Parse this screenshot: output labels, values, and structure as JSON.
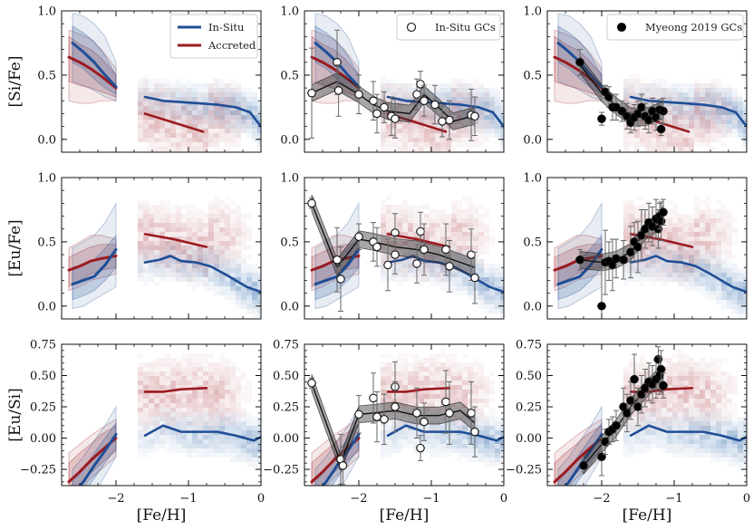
{
  "chart_data": {
    "type": "scatter",
    "layout": "3x3 grid",
    "xlabel": "[Fe/H]",
    "xlim": [
      -2.75,
      0.0
    ],
    "xticks": [
      -2,
      -1,
      0
    ],
    "xtick_labels": [
      "−2",
      "−1",
      "0"
    ],
    "colors": {
      "insitu": "#1f4e96",
      "accreted": "#9b1b20",
      "gc": "#111111"
    },
    "rows": [
      {
        "ylabel": "[Si/Fe]",
        "ylim": [
          -0.1,
          1.0
        ],
        "yticks": [
          0.0,
          0.5,
          1.0
        ],
        "ytick_labels": [
          "0.0",
          "0.5",
          "1.0"
        ],
        "insitu_lowz": {
          "x": [
            -2.6,
            -2.45,
            -2.3,
            -2.15,
            -2.0
          ],
          "y": [
            0.75,
            0.68,
            0.6,
            0.5,
            0.41
          ],
          "lo": [
            0.6,
            0.55,
            0.47,
            0.4,
            0.35
          ],
          "hi": [
            0.88,
            0.83,
            0.76,
            0.65,
            0.5
          ],
          "lo2": [
            0.45,
            0.42,
            0.38,
            0.33,
            0.3
          ],
          "hi2": [
            0.98,
            0.96,
            0.9,
            0.8,
            0.6
          ]
        },
        "accreted_lowz": {
          "x": [
            -2.65,
            -2.5,
            -2.35,
            -2.2,
            -2.0
          ],
          "y": [
            0.64,
            0.6,
            0.55,
            0.49,
            0.4
          ],
          "lo": [
            0.45,
            0.42,
            0.4,
            0.37,
            0.33
          ],
          "hi": [
            0.8,
            0.74,
            0.7,
            0.63,
            0.5
          ],
          "lo2": [
            0.3,
            0.28,
            0.28,
            0.3,
            0.3
          ],
          "hi2": [
            0.85,
            0.82,
            0.78,
            0.7,
            0.55
          ]
        },
        "insitu_line": {
          "x": [
            -1.6,
            -1.35,
            -1.1,
            -0.85,
            -0.6,
            -0.35,
            -0.15,
            0.0
          ],
          "y": [
            0.33,
            0.3,
            0.29,
            0.28,
            0.27,
            0.25,
            0.21,
            0.1
          ]
        },
        "accreted_line": {
          "x": [
            -1.6,
            -1.2,
            -0.8
          ],
          "y": [
            0.2,
            0.13,
            0.06
          ]
        },
        "insitu_gcs": {
          "x": [
            -2.65,
            -2.3,
            -2.28,
            -2.0,
            -1.8,
            -1.75,
            -1.65,
            -1.55,
            -1.5,
            -1.2,
            -1.15,
            -1.1,
            -0.95,
            -0.85,
            -0.75,
            -0.45,
            -0.4
          ],
          "y": [
            0.36,
            0.6,
            0.38,
            0.35,
            0.3,
            0.2,
            0.25,
            0.18,
            0.16,
            0.35,
            0.43,
            0.3,
            0.27,
            0.14,
            0.15,
            0.19,
            0.18
          ],
          "err": [
            0.35,
            0.25,
            0.2,
            0.15,
            0.15,
            0.15,
            0.12,
            0.15,
            0.15,
            0.12,
            0.1,
            0.12,
            0.15,
            0.12,
            0.15,
            0.2,
            0.15
          ],
          "line_x": [
            -2.65,
            -2.3,
            -2.0,
            -1.8,
            -1.6,
            -1.3,
            -1.1,
            -0.9,
            -0.7,
            -0.5,
            -0.4
          ],
          "line_y": [
            0.36,
            0.45,
            0.35,
            0.27,
            0.22,
            0.2,
            0.35,
            0.25,
            0.14,
            0.17,
            0.18
          ]
        },
        "myeong_gcs": {
          "x": [
            -2.3,
            -2.0,
            -1.95,
            -1.9,
            -1.85,
            -1.8,
            -1.72,
            -1.65,
            -1.6,
            -1.55,
            -1.5,
            -1.45,
            -1.4,
            -1.35,
            -1.3,
            -1.25,
            -1.2,
            -1.18,
            -1.15
          ],
          "y": [
            0.6,
            0.16,
            0.37,
            0.33,
            0.25,
            0.25,
            0.22,
            0.18,
            0.13,
            0.17,
            0.2,
            0.25,
            0.18,
            0.15,
            0.22,
            0.17,
            0.23,
            0.08,
            0.22
          ],
          "err": [
            0.1,
            0.05,
            0.05,
            0.08,
            0.1,
            0.1,
            0.08,
            0.1,
            0.08,
            0.1,
            0.1,
            0.1,
            0.1,
            0.1,
            0.1,
            0.1,
            0.08,
            0.05,
            0.1
          ],
          "line_x": [
            -2.3,
            -2.0,
            -1.8,
            -1.6,
            -1.4,
            -1.2,
            -1.15
          ],
          "line_y": [
            0.58,
            0.36,
            0.26,
            0.18,
            0.17,
            0.22,
            0.23
          ]
        }
      },
      {
        "ylabel": "[Eu/Fe]",
        "ylim": [
          -0.1,
          1.0
        ],
        "yticks": [
          0.0,
          0.5,
          1.0
        ],
        "ytick_labels": [
          "0.0",
          "0.5",
          "1.0"
        ],
        "insitu_lowz": {
          "x": [
            -2.6,
            -2.45,
            -2.3,
            -2.15,
            -2.0
          ],
          "y": [
            0.17,
            0.2,
            0.23,
            0.32,
            0.44
          ],
          "lo": [
            0.05,
            0.08,
            0.12,
            0.2,
            0.3
          ],
          "hi": [
            0.3,
            0.33,
            0.36,
            0.45,
            0.55
          ],
          "lo2": [
            -0.02,
            0.0,
            0.05,
            0.1,
            0.15
          ],
          "hi2": [
            0.45,
            0.5,
            0.55,
            0.65,
            0.8
          ]
        },
        "accreted_lowz": {
          "x": [
            -2.65,
            -2.5,
            -2.35,
            -2.2,
            -2.0
          ],
          "y": [
            0.28,
            0.31,
            0.35,
            0.37,
            0.39
          ],
          "lo": [
            0.15,
            0.2,
            0.25,
            0.28,
            0.3
          ],
          "hi": [
            0.38,
            0.42,
            0.46,
            0.48,
            0.48
          ],
          "lo2": [
            0.12,
            0.15,
            0.2,
            0.22,
            0.25
          ],
          "hi2": [
            0.45,
            0.5,
            0.55,
            0.55,
            0.52
          ]
        },
        "insitu_line": {
          "x": [
            -1.6,
            -1.4,
            -1.25,
            -1.1,
            -0.9,
            -0.7,
            -0.5,
            -0.35,
            -0.2,
            0.0
          ],
          "y": [
            0.34,
            0.36,
            0.39,
            0.35,
            0.34,
            0.31,
            0.25,
            0.2,
            0.15,
            0.11
          ]
        },
        "accreted_line": {
          "x": [
            -1.6,
            -1.2,
            -0.75
          ],
          "y": [
            0.56,
            0.52,
            0.46
          ]
        },
        "insitu_gcs": {
          "x": [
            -2.65,
            -2.3,
            -2.25,
            -2.0,
            -1.8,
            -1.75,
            -1.6,
            -1.5,
            -1.5,
            -1.2,
            -1.15,
            -1.1,
            -0.8,
            -0.75,
            -0.45,
            -0.4
          ],
          "y": [
            0.8,
            0.36,
            0.21,
            0.54,
            0.5,
            0.46,
            0.32,
            0.57,
            0.4,
            0.33,
            0.58,
            0.44,
            0.44,
            0.31,
            0.4,
            0.22
          ],
          "err": [
            0.04,
            0.25,
            0.25,
            0.1,
            0.15,
            0.15,
            0.2,
            0.15,
            0.15,
            0.15,
            0.15,
            0.2,
            0.2,
            0.2,
            0.2,
            0.2
          ],
          "line_x": [
            -2.65,
            -2.3,
            -2.0,
            -1.8,
            -1.5,
            -1.2,
            -0.9,
            -0.6,
            -0.4
          ],
          "line_y": [
            0.8,
            0.3,
            0.52,
            0.5,
            0.46,
            0.44,
            0.4,
            0.34,
            0.3
          ]
        },
        "myeong_gcs": {
          "x": [
            -2.3,
            -2.0,
            -1.95,
            -1.9,
            -1.85,
            -1.8,
            -1.7,
            -1.6,
            -1.55,
            -1.5,
            -1.45,
            -1.4,
            -1.35,
            -1.3,
            -1.25,
            -1.22,
            -1.2,
            -1.18,
            -1.15
          ],
          "y": [
            0.36,
            0.0,
            0.34,
            0.35,
            0.32,
            0.37,
            0.36,
            0.42,
            0.5,
            0.46,
            0.55,
            0.6,
            0.65,
            0.62,
            0.68,
            0.6,
            0.7,
            0.66,
            0.73
          ],
          "err": [
            0.08,
            0.3,
            0.25,
            0.15,
            0.2,
            0.15,
            0.15,
            0.2,
            0.15,
            0.2,
            0.2,
            0.15,
            0.15,
            0.15,
            0.15,
            0.15,
            0.1,
            0.15,
            0.1
          ],
          "line_x": [
            -2.3,
            -2.0,
            -1.8,
            -1.6,
            -1.4,
            -1.2,
            -1.15
          ],
          "line_y": [
            0.36,
            0.34,
            0.36,
            0.42,
            0.58,
            0.66,
            0.72
          ]
        }
      },
      {
        "ylabel": "[Eu/Si]",
        "ylim": [
          -0.38,
          0.75
        ],
        "yticks": [
          -0.25,
          0.0,
          0.25,
          0.5,
          0.75
        ],
        "ytick_labels": [
          "−0.25",
          "0.00",
          "0.25",
          "0.50",
          "0.75"
        ],
        "insitu_lowz": {
          "x": [
            -2.6,
            -2.45,
            -2.3,
            -2.15,
            -2.0
          ],
          "y": [
            -0.45,
            -0.35,
            -0.22,
            -0.1,
            0.03
          ],
          "lo": [
            -0.55,
            -0.45,
            -0.32,
            -0.2,
            -0.08
          ],
          "hi": [
            -0.35,
            -0.25,
            -0.12,
            0.0,
            0.12
          ],
          "lo2": [
            -0.65,
            -0.55,
            -0.45,
            -0.3,
            -0.15
          ],
          "hi2": [
            -0.25,
            -0.15,
            -0.02,
            0.1,
            0.25
          ]
        },
        "accreted_lowz": {
          "x": [
            -2.65,
            -2.5,
            -2.35,
            -2.2,
            -2.0
          ],
          "y": [
            -0.35,
            -0.27,
            -0.18,
            -0.1,
            0.0
          ],
          "lo": [
            -0.45,
            -0.37,
            -0.28,
            -0.2,
            -0.1
          ],
          "hi": [
            -0.2,
            -0.12,
            -0.05,
            0.03,
            0.1
          ],
          "lo2": [
            -0.5,
            -0.42,
            -0.32,
            -0.25,
            -0.15
          ],
          "hi2": [
            -0.12,
            -0.05,
            0.02,
            0.08,
            0.15
          ]
        },
        "insitu_line": {
          "x": [
            -1.6,
            -1.35,
            -1.1,
            -0.85,
            -0.6,
            -0.35,
            -0.1,
            0.0
          ],
          "y": [
            0.02,
            0.1,
            0.05,
            0.05,
            0.05,
            0.02,
            -0.02,
            0.01
          ]
        },
        "accreted_line": {
          "x": [
            -1.6,
            -1.35,
            -1.1,
            -0.75
          ],
          "y": [
            0.37,
            0.37,
            0.39,
            0.4
          ]
        },
        "insitu_gcs": {
          "x": [
            -2.65,
            -2.25,
            -2.22,
            -2.0,
            -1.8,
            -1.75,
            -1.65,
            -1.5,
            -1.5,
            -1.2,
            -1.15,
            -1.1,
            -0.8,
            -0.75,
            -0.45,
            -0.4
          ],
          "y": [
            0.44,
            -0.17,
            -0.22,
            0.19,
            0.32,
            0.17,
            0.15,
            0.41,
            0.25,
            0.2,
            -0.08,
            0.13,
            0.29,
            0.2,
            0.2,
            0.05
          ],
          "err": [
            0.04,
            0.2,
            0.15,
            0.15,
            0.2,
            0.2,
            0.2,
            0.2,
            0.2,
            0.2,
            0.1,
            0.15,
            0.25,
            0.25,
            0.25,
            0.2
          ],
          "line_x": [
            -2.65,
            -2.25,
            -2.0,
            -1.8,
            -1.5,
            -1.2,
            -0.9,
            -0.6,
            -0.4
          ],
          "line_y": [
            0.44,
            -0.2,
            0.19,
            0.2,
            0.22,
            0.18,
            0.18,
            0.22,
            0.12
          ]
        },
        "myeong_gcs": {
          "x": [
            -2.25,
            -2.0,
            -1.95,
            -1.9,
            -1.85,
            -1.8,
            -1.7,
            -1.65,
            -1.6,
            -1.55,
            -1.5,
            -1.45,
            -1.4,
            -1.35,
            -1.3,
            -1.25,
            -1.22,
            -1.2,
            -1.18,
            -1.15
          ],
          "y": [
            -0.22,
            -0.15,
            -0.03,
            0.05,
            0.07,
            0.1,
            0.25,
            0.2,
            0.3,
            0.47,
            0.25,
            0.35,
            0.4,
            0.45,
            0.43,
            0.47,
            0.63,
            0.5,
            0.55,
            0.42
          ],
          "err": [
            0.05,
            0.15,
            0.1,
            0.1,
            0.1,
            0.12,
            0.15,
            0.15,
            0.15,
            0.2,
            0.15,
            0.15,
            0.15,
            0.15,
            0.15,
            0.15,
            0.1,
            0.15,
            0.15,
            0.1
          ],
          "line_x": [
            -2.25,
            -2.0,
            -1.8,
            -1.6,
            -1.4,
            -1.25,
            -1.15
          ],
          "line_y": [
            -0.22,
            -0.05,
            0.08,
            0.25,
            0.38,
            0.47,
            0.42
          ]
        }
      }
    ],
    "panels": [
      {
        "row": 0,
        "col": 0,
        "legend": {
          "position": "top-right",
          "entries": [
            {
              "label": "In-Situ",
              "kind": "line",
              "color": "#1f4e96"
            },
            {
              "label": "Accreted",
              "kind": "line",
              "color": "#9b1b20"
            }
          ]
        }
      },
      {
        "row": 0,
        "col": 1,
        "legend": {
          "position": "top-right",
          "entries": [
            {
              "label": "In-Situ GCs",
              "kind": "open-circle"
            }
          ]
        }
      },
      {
        "row": 0,
        "col": 2,
        "legend": {
          "position": "top-right",
          "entries": [
            {
              "label": "Myeong 2019 GCs",
              "kind": "filled-circle"
            }
          ]
        }
      }
    ]
  }
}
